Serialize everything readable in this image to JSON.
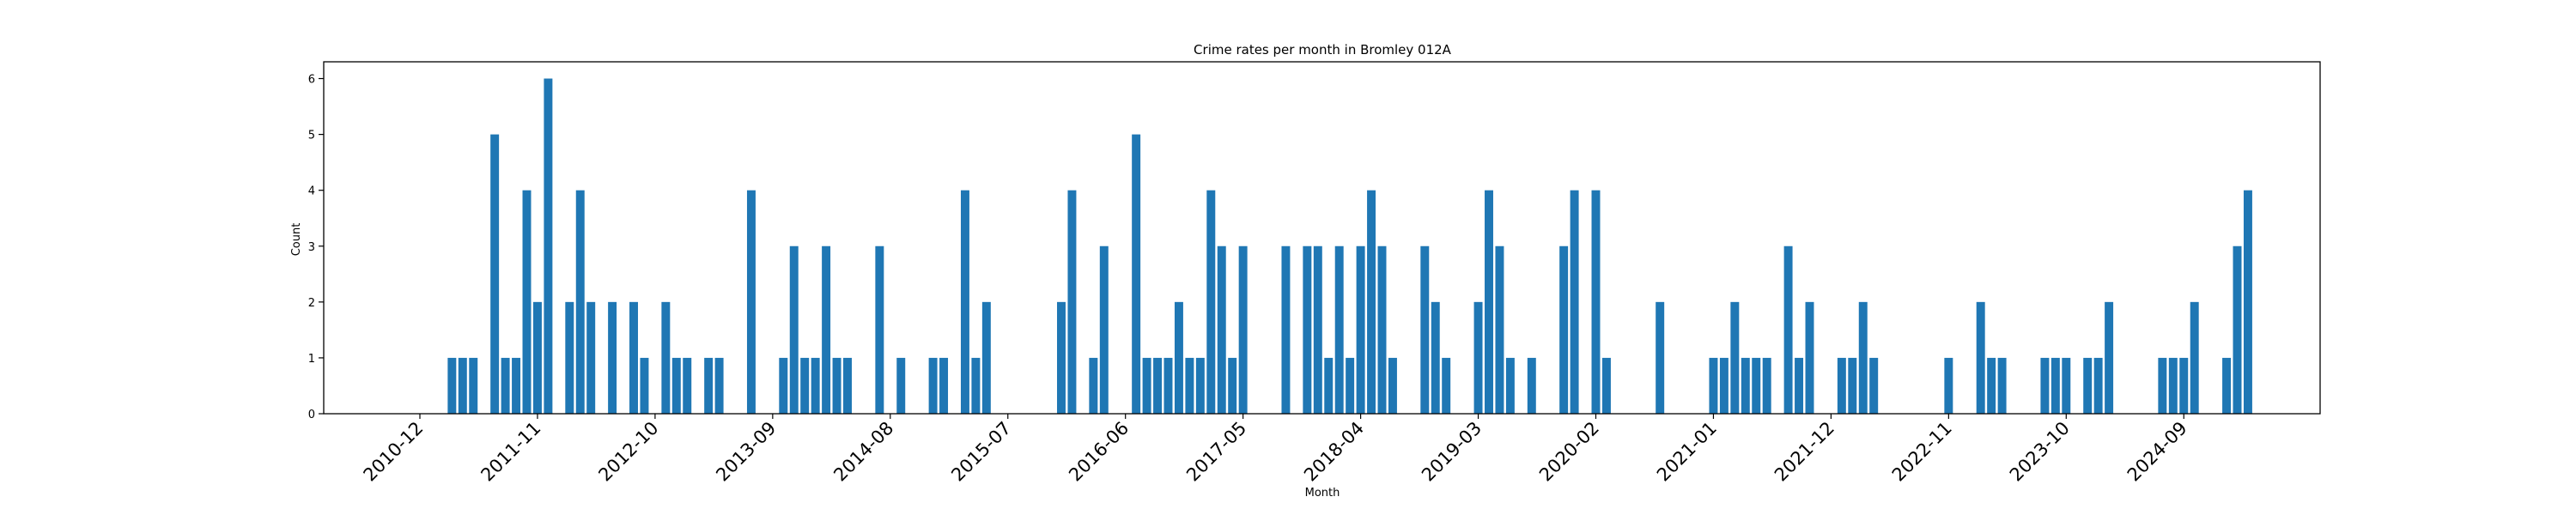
{
  "chart_data": {
    "type": "bar",
    "title": "Crime rates per month in Bromley 012A",
    "xlabel": "Month",
    "ylabel": "Count",
    "ylim": [
      0,
      6.3
    ],
    "yticks": [
      0,
      1,
      2,
      3,
      4,
      5,
      6
    ],
    "xtick_labels": [
      "2010-12",
      "2011-11",
      "2012-10",
      "2013-09",
      "2014-08",
      "2015-07",
      "2016-06",
      "2017-05",
      "2018-04",
      "2019-03",
      "2020-02",
      "2021-01",
      "2021-12",
      "2022-11",
      "2023-10",
      "2024-09"
    ],
    "grid": false,
    "bar_color": "#1f77b4",
    "points": [
      {
        "x": "2011-03",
        "y": 1
      },
      {
        "x": "2011-04",
        "y": 1
      },
      {
        "x": "2011-05",
        "y": 1
      },
      {
        "x": "2011-07",
        "y": 5
      },
      {
        "x": "2011-08",
        "y": 1
      },
      {
        "x": "2011-09",
        "y": 1
      },
      {
        "x": "2011-10",
        "y": 4
      },
      {
        "x": "2011-11",
        "y": 2
      },
      {
        "x": "2011-12",
        "y": 6
      },
      {
        "x": "2012-02",
        "y": 2
      },
      {
        "x": "2012-03",
        "y": 4
      },
      {
        "x": "2012-04",
        "y": 2
      },
      {
        "x": "2012-06",
        "y": 2
      },
      {
        "x": "2012-08",
        "y": 2
      },
      {
        "x": "2012-09",
        "y": 1
      },
      {
        "x": "2012-11",
        "y": 2
      },
      {
        "x": "2012-12",
        "y": 1
      },
      {
        "x": "2013-01",
        "y": 1
      },
      {
        "x": "2013-03",
        "y": 1
      },
      {
        "x": "2013-04",
        "y": 1
      },
      {
        "x": "2013-07",
        "y": 4
      },
      {
        "x": "2013-10",
        "y": 1
      },
      {
        "x": "2013-11",
        "y": 3
      },
      {
        "x": "2013-12",
        "y": 1
      },
      {
        "x": "2014-01",
        "y": 1
      },
      {
        "x": "2014-02",
        "y": 3
      },
      {
        "x": "2014-03",
        "y": 1
      },
      {
        "x": "2014-04",
        "y": 1
      },
      {
        "x": "2014-07",
        "y": 3
      },
      {
        "x": "2014-09",
        "y": 1
      },
      {
        "x": "2014-12",
        "y": 1
      },
      {
        "x": "2015-01",
        "y": 1
      },
      {
        "x": "2015-03",
        "y": 4
      },
      {
        "x": "2015-04",
        "y": 1
      },
      {
        "x": "2015-05",
        "y": 2
      },
      {
        "x": "2015-12",
        "y": 2
      },
      {
        "x": "2016-01",
        "y": 4
      },
      {
        "x": "2016-03",
        "y": 1
      },
      {
        "x": "2016-04",
        "y": 3
      },
      {
        "x": "2016-07",
        "y": 5
      },
      {
        "x": "2016-08",
        "y": 1
      },
      {
        "x": "2016-09",
        "y": 1
      },
      {
        "x": "2016-10",
        "y": 1
      },
      {
        "x": "2016-11",
        "y": 2
      },
      {
        "x": "2016-12",
        "y": 1
      },
      {
        "x": "2017-01",
        "y": 1
      },
      {
        "x": "2017-02",
        "y": 4
      },
      {
        "x": "2017-03",
        "y": 3
      },
      {
        "x": "2017-04",
        "y": 1
      },
      {
        "x": "2017-05",
        "y": 3
      },
      {
        "x": "2017-09",
        "y": 3
      },
      {
        "x": "2017-11",
        "y": 3
      },
      {
        "x": "2017-12",
        "y": 3
      },
      {
        "x": "2018-01",
        "y": 1
      },
      {
        "x": "2018-02",
        "y": 3
      },
      {
        "x": "2018-03",
        "y": 1
      },
      {
        "x": "2018-04",
        "y": 3
      },
      {
        "x": "2018-05",
        "y": 4
      },
      {
        "x": "2018-06",
        "y": 3
      },
      {
        "x": "2018-07",
        "y": 1
      },
      {
        "x": "2018-10",
        "y": 3
      },
      {
        "x": "2018-11",
        "y": 2
      },
      {
        "x": "2018-12",
        "y": 1
      },
      {
        "x": "2019-03",
        "y": 2
      },
      {
        "x": "2019-04",
        "y": 4
      },
      {
        "x": "2019-05",
        "y": 3
      },
      {
        "x": "2019-06",
        "y": 1
      },
      {
        "x": "2019-08",
        "y": 1
      },
      {
        "x": "2019-11",
        "y": 3
      },
      {
        "x": "2019-12",
        "y": 4
      },
      {
        "x": "2020-02",
        "y": 4
      },
      {
        "x": "2020-03",
        "y": 1
      },
      {
        "x": "2020-08",
        "y": 2
      },
      {
        "x": "2021-01",
        "y": 1
      },
      {
        "x": "2021-02",
        "y": 1
      },
      {
        "x": "2021-03",
        "y": 2
      },
      {
        "x": "2021-04",
        "y": 1
      },
      {
        "x": "2021-05",
        "y": 1
      },
      {
        "x": "2021-06",
        "y": 1
      },
      {
        "x": "2021-08",
        "y": 3
      },
      {
        "x": "2021-09",
        "y": 1
      },
      {
        "x": "2021-10",
        "y": 2
      },
      {
        "x": "2022-01",
        "y": 1
      },
      {
        "x": "2022-02",
        "y": 1
      },
      {
        "x": "2022-03",
        "y": 2
      },
      {
        "x": "2022-04",
        "y": 1
      },
      {
        "x": "2022-11",
        "y": 1
      },
      {
        "x": "2023-02",
        "y": 2
      },
      {
        "x": "2023-03",
        "y": 1
      },
      {
        "x": "2023-04",
        "y": 1
      },
      {
        "x": "2023-08",
        "y": 1
      },
      {
        "x": "2023-09",
        "y": 1
      },
      {
        "x": "2023-10",
        "y": 1
      },
      {
        "x": "2023-12",
        "y": 1
      },
      {
        "x": "2024-01",
        "y": 1
      },
      {
        "x": "2024-02",
        "y": 2
      },
      {
        "x": "2024-07",
        "y": 1
      },
      {
        "x": "2024-08",
        "y": 1
      },
      {
        "x": "2024-09",
        "y": 1
      },
      {
        "x": "2024-10",
        "y": 2
      },
      {
        "x": "2025-01",
        "y": 1
      },
      {
        "x": "2025-02",
        "y": 3
      },
      {
        "x": "2025-03",
        "y": 4
      }
    ]
  }
}
